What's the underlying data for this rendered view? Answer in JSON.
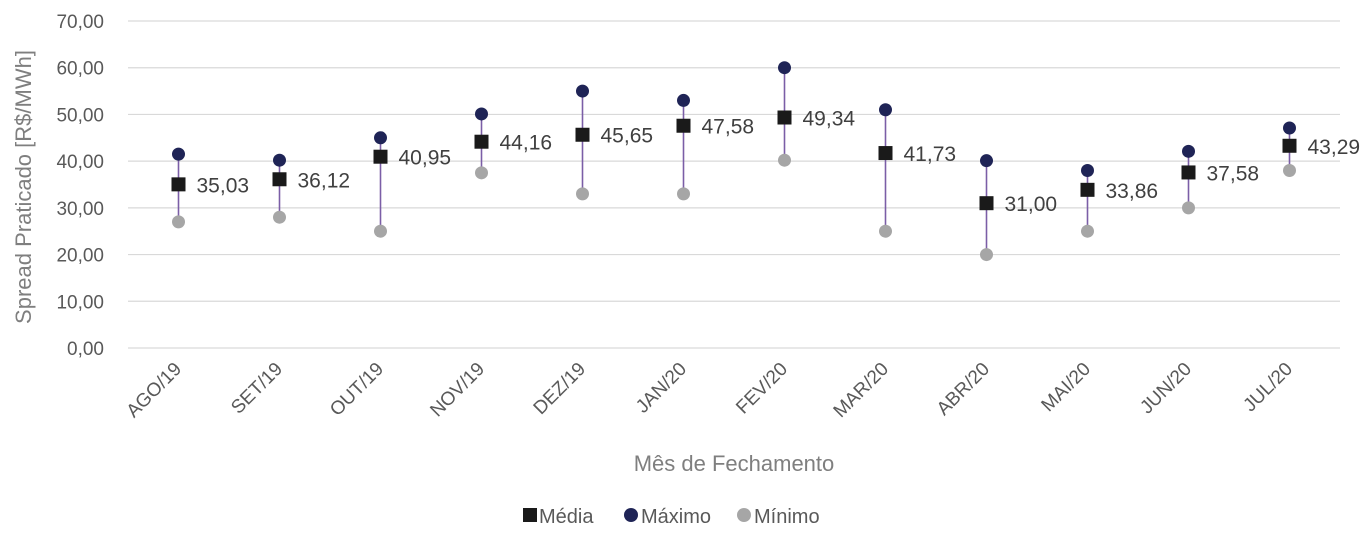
{
  "chart_data": {
    "type": "scatter",
    "categories": [
      "AGO/19",
      "SET/19",
      "OUT/19",
      "NOV/19",
      "DEZ/19",
      "JAN/20",
      "FEV/20",
      "MAR/20",
      "ABR/20",
      "MAI/20",
      "JUN/20",
      "JUL/20"
    ],
    "series": [
      {
        "name": "Média",
        "marker": "square",
        "color": "#1a1a1a",
        "values": [
          35.03,
          36.12,
          40.95,
          44.16,
          45.65,
          47.58,
          49.34,
          41.73,
          31.0,
          33.86,
          37.58,
          43.29
        ]
      },
      {
        "name": "Máximo",
        "marker": "circle",
        "color": "#1f2456",
        "values": [
          41.5,
          40.2,
          45.0,
          50.1,
          55.0,
          53.0,
          60.0,
          51.0,
          40.1,
          38.0,
          42.1,
          47.1
        ]
      },
      {
        "name": "Mínimo",
        "marker": "circle",
        "color": "#a6a6a6",
        "values": [
          27.0,
          28.0,
          25.0,
          37.5,
          33.0,
          33.0,
          40.2,
          25.0,
          20.0,
          25.0,
          30.0,
          38.0
        ]
      }
    ],
    "data_labels": [
      "35,03",
      "36,12",
      "40,95",
      "44,16",
      "45,65",
      "47,58",
      "49,34",
      "41,73",
      "31,00",
      "33,86",
      "37,58",
      "43,29"
    ],
    "y_ticks": [
      "0,00",
      "10,00",
      "20,00",
      "30,00",
      "40,00",
      "50,00",
      "60,00",
      "70,00"
    ],
    "ylim": [
      0,
      70
    ],
    "xlabel": "Mês de Fechamento",
    "ylabel": "Spread Praticado [R$/MWh]",
    "grid": true,
    "legend_position": "bottom",
    "range_line_color": "#7b5ea7"
  }
}
